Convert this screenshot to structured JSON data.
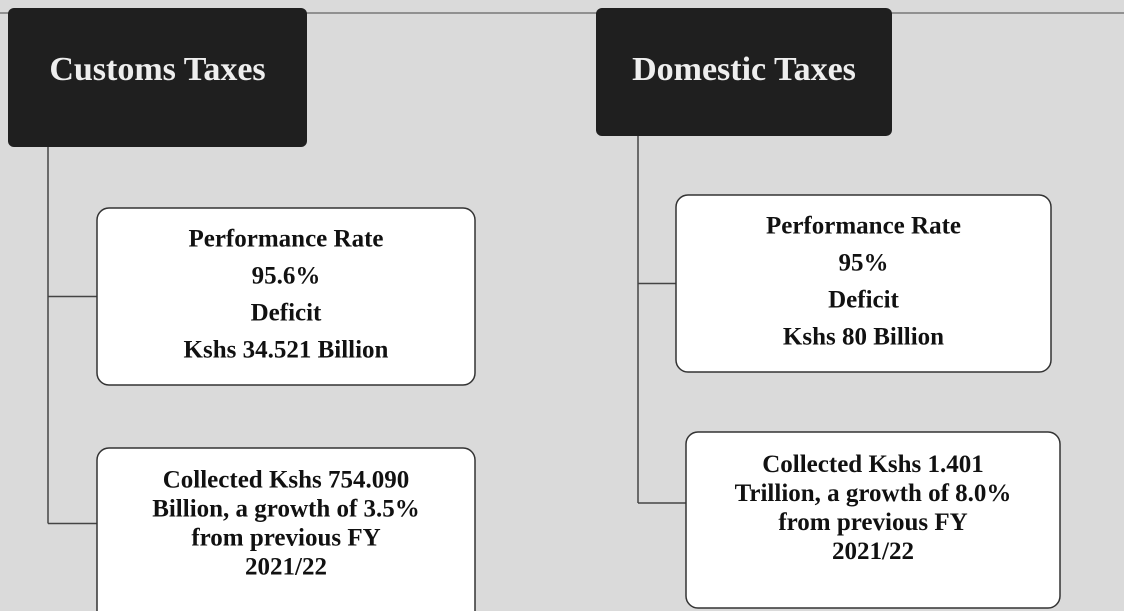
{
  "columns": [
    {
      "title": "Customs Taxes",
      "boxes": [
        {
          "lines": [
            "Performance Rate",
            "95.6%",
            "Deficit",
            "Kshs 34.521 Billion"
          ]
        },
        {
          "lines": [
            "Collected Kshs 754.090",
            "Billion, a growth of 3.5%",
            "from previous FY",
            "2021/22"
          ]
        }
      ]
    },
    {
      "title": "Domestic Taxes",
      "boxes": [
        {
          "lines": [
            "Performance Rate",
            "95%",
            "Deficit",
            "Kshs 80 Billion"
          ]
        },
        {
          "lines": [
            "Collected Kshs 1.401",
            "Trillion, a growth of 8.0%",
            "from previous FY",
            "2021/22"
          ]
        }
      ]
    }
  ]
}
